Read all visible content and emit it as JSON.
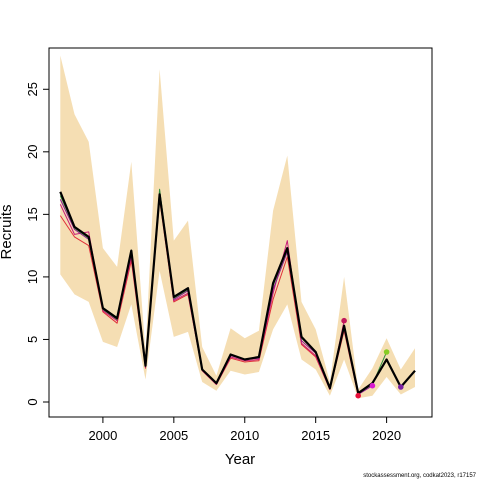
{
  "chart_data": {
    "type": "line",
    "xlabel": "Year",
    "ylabel": "Recruits",
    "xlim": [
      1996.2,
      2023.2
    ],
    "ylim": [
      -1.2,
      28.3
    ],
    "x_ticks": [
      2000,
      2005,
      2010,
      2015,
      2020
    ],
    "y_ticks": [
      0,
      5,
      10,
      15,
      20,
      25
    ],
    "grid": false,
    "legend": "none",
    "source": "stockassessment.org, codkat2023, r17157",
    "colors": {
      "band": "#f5deb3",
      "main": "#000000",
      "retro": [
        "#e0303a",
        "#c81e78",
        "#8c1b8e",
        "#2e8b3a",
        "#e8103a",
        "#ff3fb0",
        "#88cc22"
      ]
    },
    "confidence_band": {
      "x": [
        1997,
        1998,
        1999,
        2000,
        2001,
        2002,
        2003,
        2004,
        2005,
        2006,
        2007,
        2008,
        2009,
        2010,
        2011,
        2012,
        2013,
        2014,
        2015,
        2016,
        2017,
        2018,
        2019,
        2020,
        2021,
        2022
      ],
      "lower": [
        10.2,
        8.6,
        8.0,
        4.8,
        4.4,
        7.8,
        1.8,
        10.5,
        5.2,
        5.6,
        1.6,
        0.9,
        2.5,
        2.2,
        2.4,
        5.8,
        7.8,
        3.4,
        2.6,
        0.5,
        3.4,
        0.3,
        0.5,
        2.0,
        0.6,
        1.2
      ],
      "upper": [
        27.7,
        23.0,
        20.8,
        12.3,
        10.8,
        19.2,
        4.0,
        26.6,
        12.9,
        14.5,
        4.4,
        2.1,
        5.9,
        5.1,
        5.7,
        15.3,
        19.7,
        8.0,
        5.8,
        1.6,
        10.0,
        1.0,
        2.7,
        5.1,
        2.6,
        4.3
      ]
    },
    "series": [
      {
        "x": [
          1997,
          1998,
          1999,
          2000,
          2001,
          2002,
          2003,
          2004,
          2005,
          2006,
          2007,
          2008,
          2009,
          2010,
          2011,
          2012,
          2013,
          2014,
          2015,
          2016,
          2017,
          2018,
          2019,
          2020,
          2021,
          2022
        ],
        "y": [
          16.8,
          14.0,
          13.2,
          7.5,
          6.7,
          12.1,
          2.9,
          16.6,
          8.4,
          9.1,
          2.6,
          1.5,
          3.8,
          3.4,
          3.6,
          9.5,
          12.3,
          5.2,
          4.0,
          1.1,
          6.1,
          0.7,
          1.5,
          3.4,
          1.2,
          2.5
        ]
      },
      {
        "x": [
          1997,
          1998,
          1999,
          2000,
          2001,
          2002,
          2003,
          2004,
          2005,
          2006,
          2007,
          2008,
          2009,
          2010,
          2011,
          2012,
          2013,
          2014,
          2015,
          2016,
          2017,
          2018
        ],
        "y": [
          14.9,
          13.2,
          12.5,
          7.2,
          6.3,
          11.3,
          2.7,
          16.2,
          8.0,
          8.6,
          2.5,
          1.4,
          3.5,
          3.2,
          3.3,
          8.2,
          11.6,
          4.6,
          3.6,
          1.0,
          5.7,
          0.5
        ]
      },
      {
        "x": [
          1997,
          1998,
          1999,
          2000,
          2001,
          2002,
          2003,
          2004,
          2005,
          2006,
          2007,
          2008,
          2009,
          2010,
          2011,
          2012,
          2013,
          2014,
          2015,
          2016,
          2017
        ],
        "y": [
          15.8,
          13.4,
          13.6,
          7.3,
          6.5,
          11.6,
          2.8,
          16.4,
          8.1,
          8.7,
          2.5,
          1.4,
          3.6,
          3.3,
          3.4,
          8.7,
          12.9,
          4.7,
          3.7,
          1.0,
          6.5
        ]
      },
      {
        "x": [
          1997,
          1998,
          1999,
          2000,
          2001,
          2002,
          2003,
          2004,
          2005,
          2006,
          2007,
          2008,
          2009,
          2010,
          2011,
          2012,
          2013,
          2014,
          2015,
          2016,
          2017,
          2018,
          2019
        ],
        "y": [
          16.2,
          13.8,
          13.0,
          7.4,
          6.6,
          11.8,
          2.8,
          16.8,
          8.2,
          8.9,
          2.6,
          1.5,
          3.7,
          3.4,
          3.5,
          9.0,
          12.0,
          4.9,
          3.9,
          1.1,
          5.9,
          0.6,
          1.3
        ]
      },
      {
        "x": [
          1997,
          1998,
          1999,
          2000,
          2001,
          2002,
          2003,
          2004,
          2005,
          2006,
          2007,
          2008,
          2009,
          2010,
          2011,
          2012,
          2013,
          2014,
          2015,
          2016,
          2017,
          2018,
          2019,
          2020
        ],
        "y": [
          16.5,
          13.9,
          13.1,
          7.4,
          6.6,
          12.0,
          2.9,
          17.0,
          8.3,
          9.0,
          2.6,
          1.5,
          3.8,
          3.4,
          3.6,
          9.3,
          12.2,
          5.1,
          4.0,
          1.1,
          6.0,
          0.7,
          1.4,
          4.0
        ]
      }
    ],
    "end_points": [
      {
        "x": 2017,
        "y": 6.5
      },
      {
        "x": 2018,
        "y": 0.5
      },
      {
        "x": 2019,
        "y": 1.3
      },
      {
        "x": 2020,
        "y": 4.0
      },
      {
        "x": 2021,
        "y": 1.2
      }
    ]
  }
}
